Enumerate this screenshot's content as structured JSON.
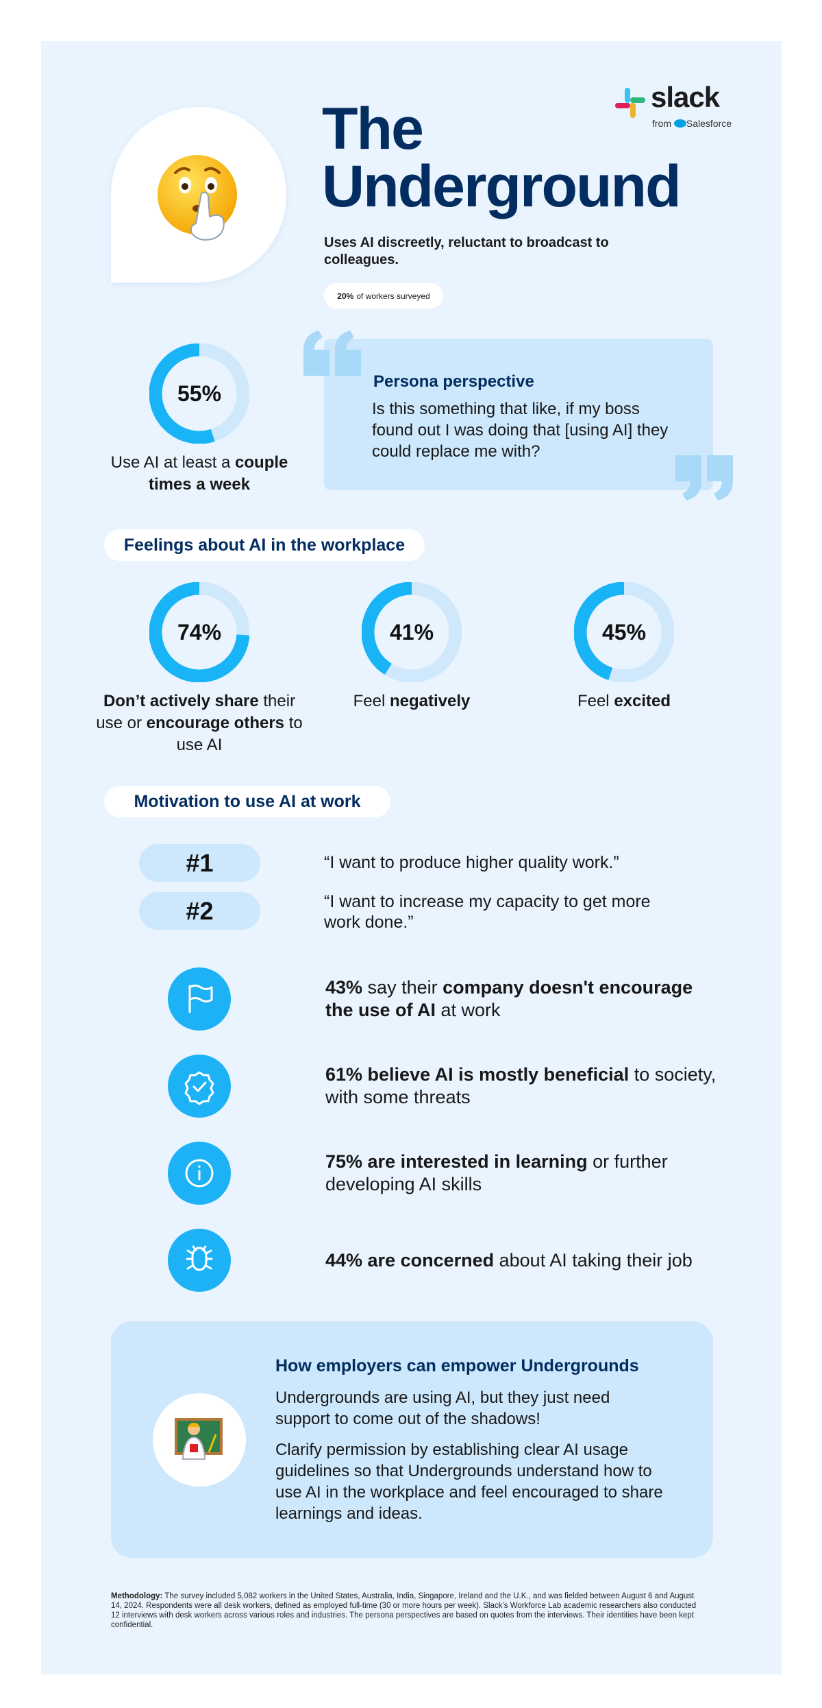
{
  "logo": {
    "brand": "slack",
    "from": "from",
    "company": "Salesforce"
  },
  "header": {
    "title_lines": [
      "The",
      "Underground"
    ],
    "subtitle": "Uses AI discreetly, reluctant to broadcast to colleagues.",
    "share": {
      "value": 20,
      "label": "20%",
      "text": "of workers surveyed"
    }
  },
  "usage": {
    "value": 55,
    "label": "55%",
    "caption": [
      {
        "t": "Use AI at least a "
      },
      {
        "t": "couple times a week",
        "b": true
      }
    ]
  },
  "persona": {
    "heading": "Persona perspective",
    "quote": "Is this something that like, if my boss found out I was doing that [using AI] they could replace me with?"
  },
  "feelings": {
    "heading": "Feelings about AI in the workplace",
    "items": [
      {
        "value": 74,
        "label": "74%",
        "caption": [
          {
            "t": "Don’t actively share",
            "b": true
          },
          {
            "t": " their use or "
          },
          {
            "t": "encourage others",
            "b": true
          },
          {
            "t": " to use AI"
          }
        ]
      },
      {
        "value": 41,
        "label": "41%",
        "caption": [
          {
            "t": "Feel "
          },
          {
            "t": "negatively",
            "b": true
          }
        ]
      },
      {
        "value": 45,
        "label": "45%",
        "caption": [
          {
            "t": "Feel "
          },
          {
            "t": "excited",
            "b": true
          }
        ]
      }
    ]
  },
  "motivation": {
    "heading": "Motivation to use AI at work",
    "ranks": [
      {
        "rank": "#1",
        "quote": "“I want to produce higher quality work.”"
      },
      {
        "rank": "#2",
        "quote": "“I want to increase my capacity to get more work done.”"
      }
    ],
    "facts": [
      [
        {
          "t": "43%",
          "b": true
        },
        {
          "t": " say their "
        },
        {
          "t": "company doesn't encourage the use of AI",
          "b": true
        },
        {
          "t": " at work"
        }
      ],
      [
        {
          "t": "61% believe AI is mostly beneficial",
          "b": true
        },
        {
          "t": " to society, with some threats"
        }
      ],
      [
        {
          "t": "75% are interested in learning",
          "b": true
        },
        {
          "t": " or further developing AI skills"
        }
      ],
      [
        {
          "t": "44% are concerned",
          "b": true
        },
        {
          "t": " about AI taking their job"
        }
      ]
    ]
  },
  "employers": {
    "heading": "How employers can empower Undergrounds",
    "paragraphs": [
      "Undergrounds are using AI, but they just need support to come out of the shadows!",
      "Clarify permission by establishing clear AI usage guidelines so that Undergrounds understand how to use AI in the workplace and feel encouraged to share learnings and ideas."
    ]
  },
  "methodology": [
    {
      "t": "Methodology:",
      "b": true
    },
    {
      "t": " The survey included 5,082 workers in the United States, Australia, India, Singapore, Ireland and the U.K., and was fielded between August 6 and August 14, 2024. Respondents were all desk workers, defined as employed full-time (30 or more hours per week). Slack’s Workforce Lab academic researchers also conducted 12 interviews with desk workers across various roles and industries. The persona perspectives are based on quotes from the interviews. Their identities have been kept confidential."
    }
  ]
}
